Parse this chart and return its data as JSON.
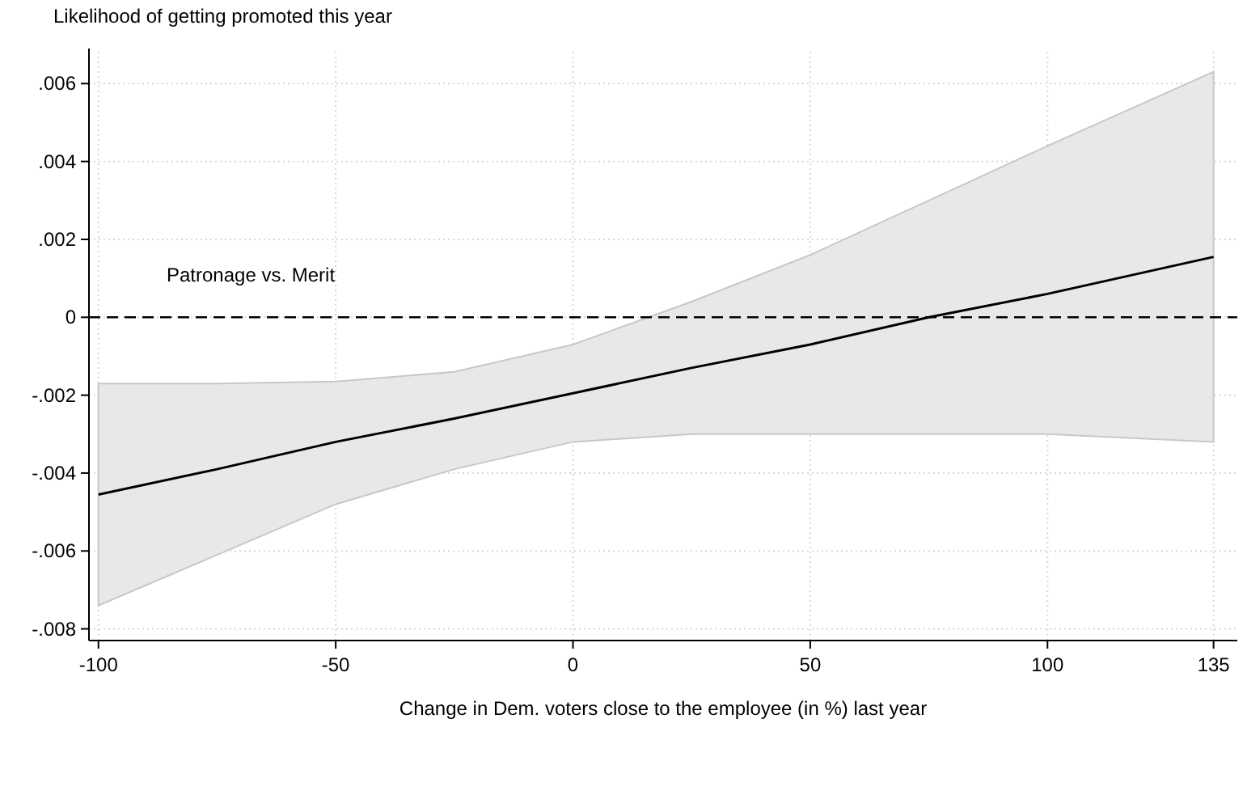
{
  "chart_data": {
    "type": "line",
    "ylabel": "Likelihood of getting promoted this year",
    "xlabel": "Change in Dem. voters close to the employee (in %) last year",
    "xlim": [
      -102,
      140
    ],
    "xticks": [
      -100,
      -50,
      0,
      50,
      100,
      135
    ],
    "ylim": [
      -0.0083,
      0.0069
    ],
    "yticks": [
      {
        "value": 0.006,
        "label": ".006"
      },
      {
        "value": 0.004,
        "label": ".004"
      },
      {
        "value": 0.002,
        "label": ".002"
      },
      0,
      {
        "value": -0.002,
        "label": "-.002"
      },
      {
        "value": -0.004,
        "label": "-.004"
      },
      {
        "value": -0.006,
        "label": "-.006"
      },
      {
        "value": -0.008,
        "label": "-.008"
      }
    ],
    "grid": true,
    "series": [
      {
        "color": "#000000",
        "x": [
          -100,
          -75,
          -50,
          -25,
          0,
          25,
          50,
          75,
          100,
          135
        ],
        "values": [
          -0.00455,
          -0.0039,
          -0.0032,
          -0.0026,
          -0.00195,
          -0.0013,
          -0.0007,
          0,
          0.0006,
          0.00155
        ],
        "lower": [
          -0.0074,
          -0.0061,
          -0.0048,
          -0.0039,
          -0.0032,
          -0.003,
          -0.003,
          -0.003,
          -0.003,
          -0.0032
        ],
        "upper": [
          -0.0017,
          -0.0017,
          -0.00165,
          -0.0014,
          -0.0007,
          0.0004,
          0.0016,
          0.003,
          0.0044,
          0.0063
        ]
      }
    ],
    "ref_lines": [
      {
        "axis": "y",
        "value": 0,
        "label": "Patronage vs. Merit",
        "color": "#000000",
        "line_style": "dashed"
      }
    ]
  }
}
